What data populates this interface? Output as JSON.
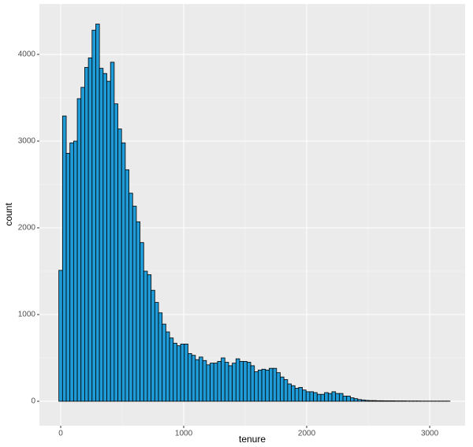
{
  "chart_data": {
    "type": "histogram",
    "x_label": "tenure",
    "y_label": "count",
    "bins": [
      -15,
      15,
      45,
      75,
      105,
      135,
      165,
      195,
      225,
      255,
      285,
      315,
      345,
      375,
      405,
      435,
      465,
      495,
      525,
      555,
      585,
      615,
      645,
      675,
      705,
      735,
      765,
      795,
      825,
      855,
      885,
      915,
      945,
      975,
      1005,
      1035,
      1065,
      1095,
      1125,
      1155,
      1185,
      1215,
      1245,
      1275,
      1305,
      1335,
      1365,
      1395,
      1425,
      1455,
      1485,
      1515,
      1545,
      1575,
      1605,
      1635,
      1665,
      1695,
      1725,
      1755,
      1785,
      1815,
      1845,
      1875,
      1905,
      1935,
      1965,
      1995,
      2025,
      2055,
      2085,
      2115,
      2145,
      2175,
      2205,
      2235,
      2265,
      2295,
      2325,
      2355,
      2385,
      2415,
      2445,
      2475,
      2505,
      2535,
      2565,
      2595,
      2625,
      2655,
      2685,
      2715,
      2745,
      2775,
      2805,
      2835,
      2865,
      2895,
      2925,
      2955,
      2985,
      3015,
      3045,
      3075,
      3105,
      3135,
      3165
    ],
    "counts": [
      1510,
      3290,
      2860,
      2980,
      3000,
      3490,
      3620,
      3850,
      3960,
      4280,
      4350,
      3840,
      3780,
      3690,
      3910,
      3430,
      3140,
      2980,
      2670,
      2400,
      2250,
      2070,
      1830,
      1500,
      1460,
      1280,
      1140,
      1020,
      890,
      800,
      730,
      670,
      640,
      660,
      660,
      550,
      530,
      480,
      510,
      470,
      420,
      440,
      440,
      460,
      500,
      450,
      410,
      440,
      490,
      460,
      460,
      450,
      410,
      340,
      360,
      370,
      360,
      380,
      380,
      330,
      280,
      250,
      200,
      180,
      150,
      160,
      130,
      110,
      110,
      100,
      80,
      80,
      100,
      90,
      110,
      90,
      90,
      60,
      60,
      40,
      30,
      20,
      15,
      10,
      8,
      8,
      6,
      6,
      5,
      5,
      5,
      4,
      4,
      4,
      3,
      3,
      3,
      3,
      2,
      2,
      2,
      2,
      2,
      2,
      2,
      2
    ],
    "color": "#1f9bd7",
    "edge_color": "#000000",
    "xlim": [
      -173,
      3288
    ],
    "ylim": [
      -282,
      4582
    ],
    "xticks": [
      0,
      1000,
      2000,
      3000
    ],
    "yticks": [
      0,
      1000,
      2000,
      3000,
      4000
    ],
    "grid": true,
    "minor_grid": true
  }
}
